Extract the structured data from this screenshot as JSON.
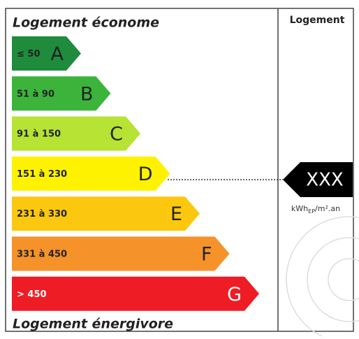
{
  "header": {
    "top": "Logement économe",
    "bottom": "Logement énergivore",
    "column": "Logement"
  },
  "classes": [
    {
      "range": "≤ 50",
      "letter": "A",
      "color": "#1e8c3c"
    },
    {
      "range": "51 à 90",
      "letter": "B",
      "color": "#3cb43c"
    },
    {
      "range": "91 à 150",
      "letter": "C",
      "color": "#b6e334"
    },
    {
      "range": "151 à 230",
      "letter": "D",
      "color": "#fff200"
    },
    {
      "range": "231 à 330",
      "letter": "E",
      "color": "#fcc80f"
    },
    {
      "range": "331 à 450",
      "letter": "F",
      "color": "#f6922a"
    },
    {
      "range": "> 450",
      "letter": "G",
      "color": "#ee1c24"
    }
  ],
  "indicator": {
    "value": "XXX",
    "unit": "kWh",
    "unit_sub": "EP",
    "unit_rest": "/m².an"
  }
}
